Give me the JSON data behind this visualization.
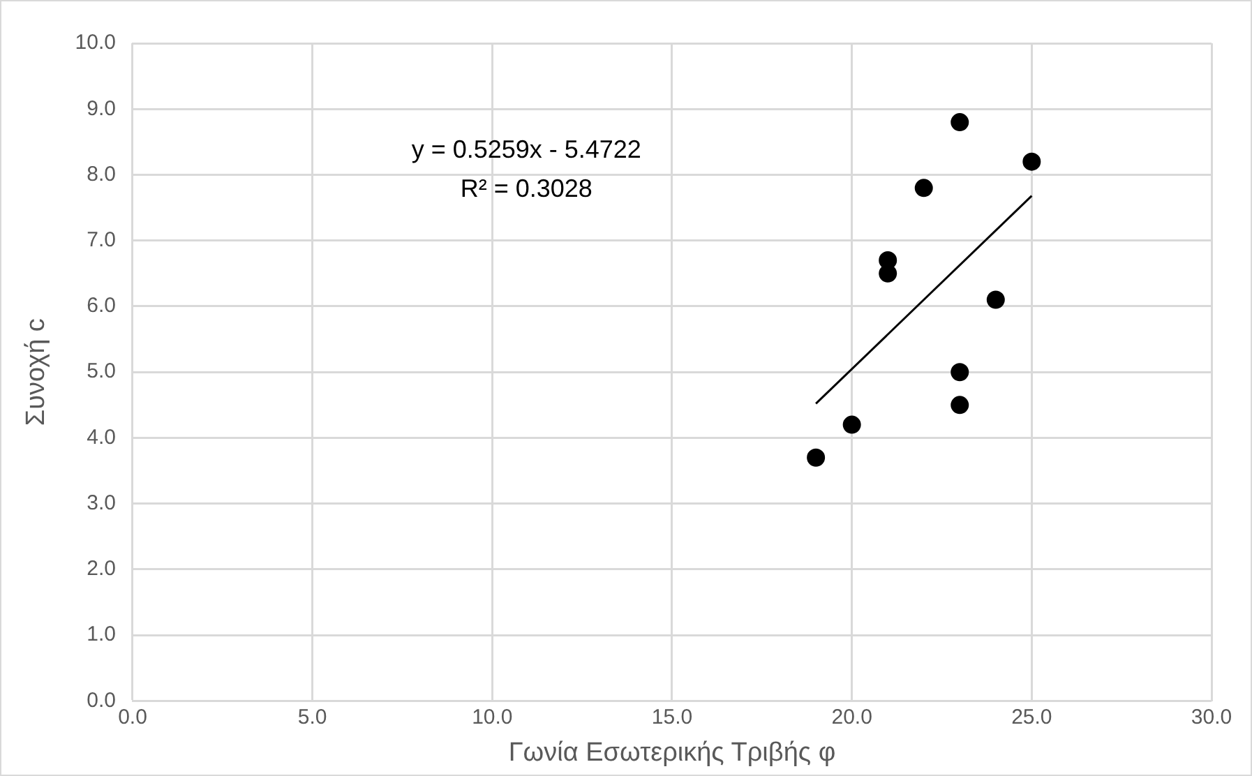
{
  "chart_data": {
    "type": "scatter",
    "xlabel": "Γωνία Εσωτερικής Τριβής φ",
    "ylabel": "Συνοχή c",
    "x": [
      19,
      20,
      21,
      21,
      22,
      23,
      23,
      23,
      24,
      25
    ],
    "series": [
      {
        "type": "scatter",
        "marker": "circle",
        "color": "#000000",
        "values": [
          3.7,
          4.2,
          6.7,
          6.5,
          7.8,
          8.8,
          5.0,
          4.5,
          6.1,
          8.2
        ]
      },
      {
        "type": "line",
        "color": "#000000",
        "x": [
          19,
          25
        ],
        "values": [
          4.52,
          7.68
        ]
      }
    ],
    "annotations": [
      "y = 0.5259x - 5.4722",
      "R² = 0.3028"
    ],
    "xlim": [
      0,
      30
    ],
    "xticks": [
      {
        "value": 0,
        "label": "0.0"
      },
      {
        "value": 5,
        "label": "5.0"
      },
      {
        "value": 10,
        "label": "10.0"
      },
      {
        "value": 15,
        "label": "15.0"
      },
      {
        "value": 20,
        "label": "20.0"
      },
      {
        "value": 25,
        "label": "25.0"
      },
      {
        "value": 30,
        "label": "30.0"
      }
    ],
    "ylim": [
      0,
      10
    ],
    "yticks": [
      {
        "value": 0,
        "label": "0.0"
      },
      {
        "value": 1,
        "label": "1.0"
      },
      {
        "value": 2,
        "label": "2.0"
      },
      {
        "value": 3,
        "label": "3.0"
      },
      {
        "value": 4,
        "label": "4.0"
      },
      {
        "value": 5,
        "label": "5.0"
      },
      {
        "value": 6,
        "label": "6.0"
      },
      {
        "value": 7,
        "label": "7.0"
      },
      {
        "value": 8,
        "label": "8.0"
      },
      {
        "value": 9,
        "label": "9.0"
      },
      {
        "value": 10,
        "label": "10.0"
      }
    ],
    "grid": true,
    "legend": false
  }
}
